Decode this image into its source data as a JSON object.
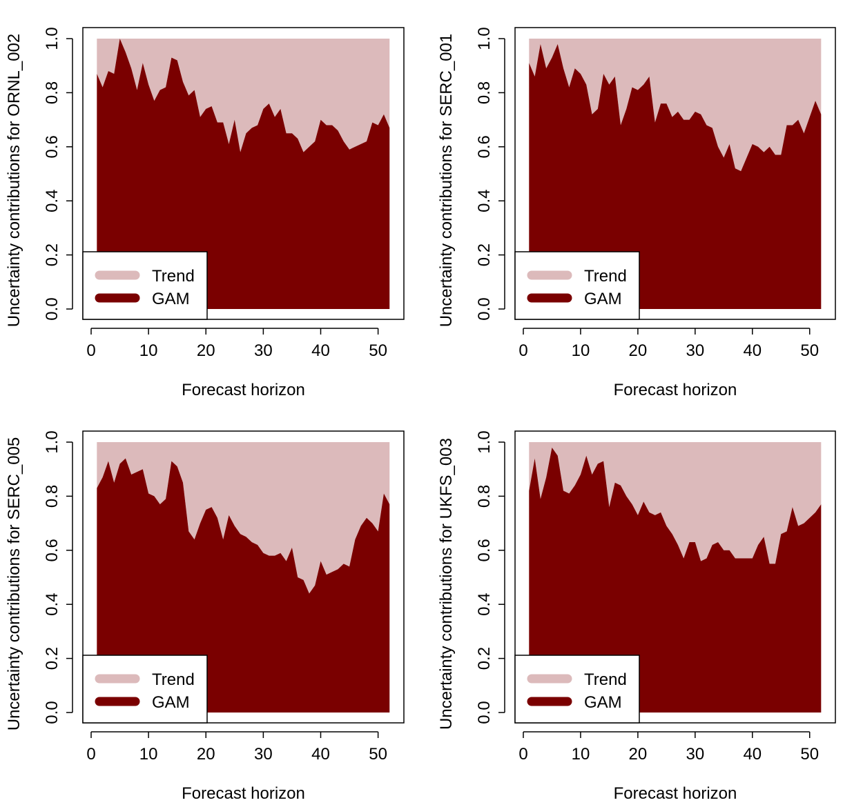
{
  "colors": {
    "trend": "#dcbabb",
    "gam": "#7a0000",
    "axis": "#000000",
    "background": "#ffffff"
  },
  "chart_data": [
    {
      "type": "area",
      "ylabel": "Uncertainty contributions for ORNL_002",
      "xlabel": "Forecast horizon",
      "xlim": [
        1,
        52
      ],
      "ylim": [
        0,
        1
      ],
      "xticks": [
        "0",
        "10",
        "20",
        "30",
        "40",
        "50"
      ],
      "yticks": [
        "0.0",
        "0.2",
        "0.4",
        "0.6",
        "0.8",
        "1.0"
      ],
      "legend": {
        "position": "bottom-left",
        "labels": [
          "Trend",
          "GAM"
        ]
      },
      "series": [
        {
          "name": "Trend",
          "values": [
            0.13,
            0.18,
            0.12,
            0.13,
            0.0,
            0.05,
            0.11,
            0.19,
            0.09,
            0.17,
            0.23,
            0.19,
            0.18,
            0.07,
            0.08,
            0.16,
            0.21,
            0.19,
            0.29,
            0.26,
            0.25,
            0.31,
            0.31,
            0.39,
            0.3,
            0.42,
            0.35,
            0.33,
            0.32,
            0.26,
            0.24,
            0.29,
            0.26,
            0.35,
            0.35,
            0.37,
            0.42,
            0.4,
            0.38,
            0.3,
            0.32,
            0.32,
            0.34,
            0.38,
            0.41,
            0.4,
            0.39,
            0.38,
            0.31,
            0.32,
            0.28,
            0.33
          ]
        },
        {
          "name": "GAM",
          "values": [
            0.87,
            0.82,
            0.88,
            0.87,
            1.0,
            0.95,
            0.89,
            0.81,
            0.91,
            0.83,
            0.77,
            0.81,
            0.82,
            0.93,
            0.92,
            0.84,
            0.79,
            0.81,
            0.71,
            0.74,
            0.75,
            0.69,
            0.69,
            0.61,
            0.7,
            0.58,
            0.65,
            0.67,
            0.68,
            0.74,
            0.76,
            0.71,
            0.74,
            0.65,
            0.65,
            0.63,
            0.58,
            0.6,
            0.62,
            0.7,
            0.68,
            0.68,
            0.66,
            0.62,
            0.59,
            0.6,
            0.61,
            0.62,
            0.69,
            0.68,
            0.72,
            0.67
          ]
        }
      ]
    },
    {
      "type": "area",
      "ylabel": "Uncertainty contributions for SERC_001",
      "xlabel": "Forecast horizon",
      "xlim": [
        1,
        52
      ],
      "ylim": [
        0,
        1
      ],
      "xticks": [
        "0",
        "10",
        "20",
        "30",
        "40",
        "50"
      ],
      "yticks": [
        "0.0",
        "0.2",
        "0.4",
        "0.6",
        "0.8",
        "1.0"
      ],
      "legend": {
        "position": "bottom-left",
        "labels": [
          "Trend",
          "GAM"
        ]
      },
      "series": [
        {
          "name": "Trend",
          "values": [
            0.09,
            0.14,
            0.02,
            0.11,
            0.07,
            0.02,
            0.11,
            0.18,
            0.11,
            0.13,
            0.17,
            0.28,
            0.26,
            0.13,
            0.17,
            0.14,
            0.32,
            0.26,
            0.18,
            0.19,
            0.17,
            0.14,
            0.31,
            0.24,
            0.24,
            0.29,
            0.27,
            0.3,
            0.3,
            0.27,
            0.28,
            0.32,
            0.33,
            0.4,
            0.44,
            0.39,
            0.48,
            0.49,
            0.44,
            0.39,
            0.4,
            0.42,
            0.4,
            0.43,
            0.43,
            0.32,
            0.32,
            0.3,
            0.35,
            0.29,
            0.23,
            0.28
          ]
        },
        {
          "name": "GAM",
          "values": [
            0.91,
            0.86,
            0.98,
            0.89,
            0.93,
            0.98,
            0.89,
            0.82,
            0.89,
            0.87,
            0.83,
            0.72,
            0.74,
            0.87,
            0.83,
            0.86,
            0.68,
            0.74,
            0.82,
            0.81,
            0.83,
            0.86,
            0.69,
            0.76,
            0.76,
            0.71,
            0.73,
            0.7,
            0.7,
            0.73,
            0.72,
            0.68,
            0.67,
            0.6,
            0.56,
            0.61,
            0.52,
            0.51,
            0.56,
            0.61,
            0.6,
            0.58,
            0.6,
            0.57,
            0.57,
            0.68,
            0.68,
            0.7,
            0.65,
            0.71,
            0.77,
            0.72
          ]
        }
      ]
    },
    {
      "type": "area",
      "ylabel": "Uncertainty contributions for SERC_005",
      "xlabel": "Forecast horizon",
      "xlim": [
        1,
        52
      ],
      "ylim": [
        0,
        1
      ],
      "xticks": [
        "0",
        "10",
        "20",
        "30",
        "40",
        "50"
      ],
      "yticks": [
        "0.0",
        "0.2",
        "0.4",
        "0.6",
        "0.8",
        "1.0"
      ],
      "legend": {
        "position": "bottom-left",
        "labels": [
          "Trend",
          "GAM"
        ]
      },
      "series": [
        {
          "name": "Trend",
          "values": [
            0.17,
            0.13,
            0.07,
            0.15,
            0.08,
            0.06,
            0.12,
            0.11,
            0.1,
            0.19,
            0.2,
            0.23,
            0.21,
            0.07,
            0.09,
            0.15,
            0.33,
            0.36,
            0.3,
            0.25,
            0.24,
            0.28,
            0.36,
            0.27,
            0.31,
            0.34,
            0.35,
            0.37,
            0.38,
            0.41,
            0.42,
            0.42,
            0.41,
            0.44,
            0.39,
            0.5,
            0.51,
            0.56,
            0.53,
            0.44,
            0.49,
            0.48,
            0.47,
            0.45,
            0.46,
            0.36,
            0.31,
            0.28,
            0.3,
            0.33,
            0.19,
            0.23
          ]
        },
        {
          "name": "GAM",
          "values": [
            0.83,
            0.87,
            0.93,
            0.85,
            0.92,
            0.94,
            0.88,
            0.89,
            0.9,
            0.81,
            0.8,
            0.77,
            0.79,
            0.93,
            0.91,
            0.85,
            0.67,
            0.64,
            0.7,
            0.75,
            0.76,
            0.72,
            0.64,
            0.73,
            0.69,
            0.66,
            0.65,
            0.63,
            0.62,
            0.59,
            0.58,
            0.58,
            0.59,
            0.56,
            0.61,
            0.5,
            0.49,
            0.44,
            0.47,
            0.56,
            0.51,
            0.52,
            0.53,
            0.55,
            0.54,
            0.64,
            0.69,
            0.72,
            0.7,
            0.67,
            0.81,
            0.77
          ]
        }
      ]
    },
    {
      "type": "area",
      "ylabel": "Uncertainty contributions for UKFS_003",
      "xlabel": "Forecast horizon",
      "xlim": [
        1,
        52
      ],
      "ylim": [
        0,
        1
      ],
      "xticks": [
        "0",
        "10",
        "20",
        "30",
        "40",
        "50"
      ],
      "yticks": [
        "0.0",
        "0.2",
        "0.4",
        "0.6",
        "0.8",
        "1.0"
      ],
      "legend": {
        "position": "bottom-left",
        "labels": [
          "Trend",
          "GAM"
        ]
      },
      "series": [
        {
          "name": "Trend",
          "values": [
            0.18,
            0.06,
            0.21,
            0.13,
            0.02,
            0.05,
            0.18,
            0.19,
            0.16,
            0.12,
            0.05,
            0.12,
            0.08,
            0.07,
            0.24,
            0.15,
            0.16,
            0.2,
            0.23,
            0.27,
            0.22,
            0.26,
            0.27,
            0.26,
            0.31,
            0.34,
            0.38,
            0.43,
            0.37,
            0.37,
            0.44,
            0.43,
            0.38,
            0.37,
            0.4,
            0.4,
            0.43,
            0.43,
            0.43,
            0.43,
            0.38,
            0.35,
            0.45,
            0.45,
            0.34,
            0.33,
            0.24,
            0.31,
            0.3,
            0.28,
            0.26,
            0.23
          ]
        },
        {
          "name": "GAM",
          "values": [
            0.82,
            0.94,
            0.79,
            0.87,
            0.98,
            0.95,
            0.82,
            0.81,
            0.84,
            0.88,
            0.95,
            0.88,
            0.92,
            0.93,
            0.76,
            0.85,
            0.84,
            0.8,
            0.77,
            0.73,
            0.78,
            0.74,
            0.73,
            0.74,
            0.69,
            0.66,
            0.62,
            0.57,
            0.63,
            0.63,
            0.56,
            0.57,
            0.62,
            0.63,
            0.6,
            0.6,
            0.57,
            0.57,
            0.57,
            0.57,
            0.62,
            0.65,
            0.55,
            0.55,
            0.66,
            0.67,
            0.76,
            0.69,
            0.7,
            0.72,
            0.74,
            0.77
          ]
        }
      ]
    }
  ]
}
